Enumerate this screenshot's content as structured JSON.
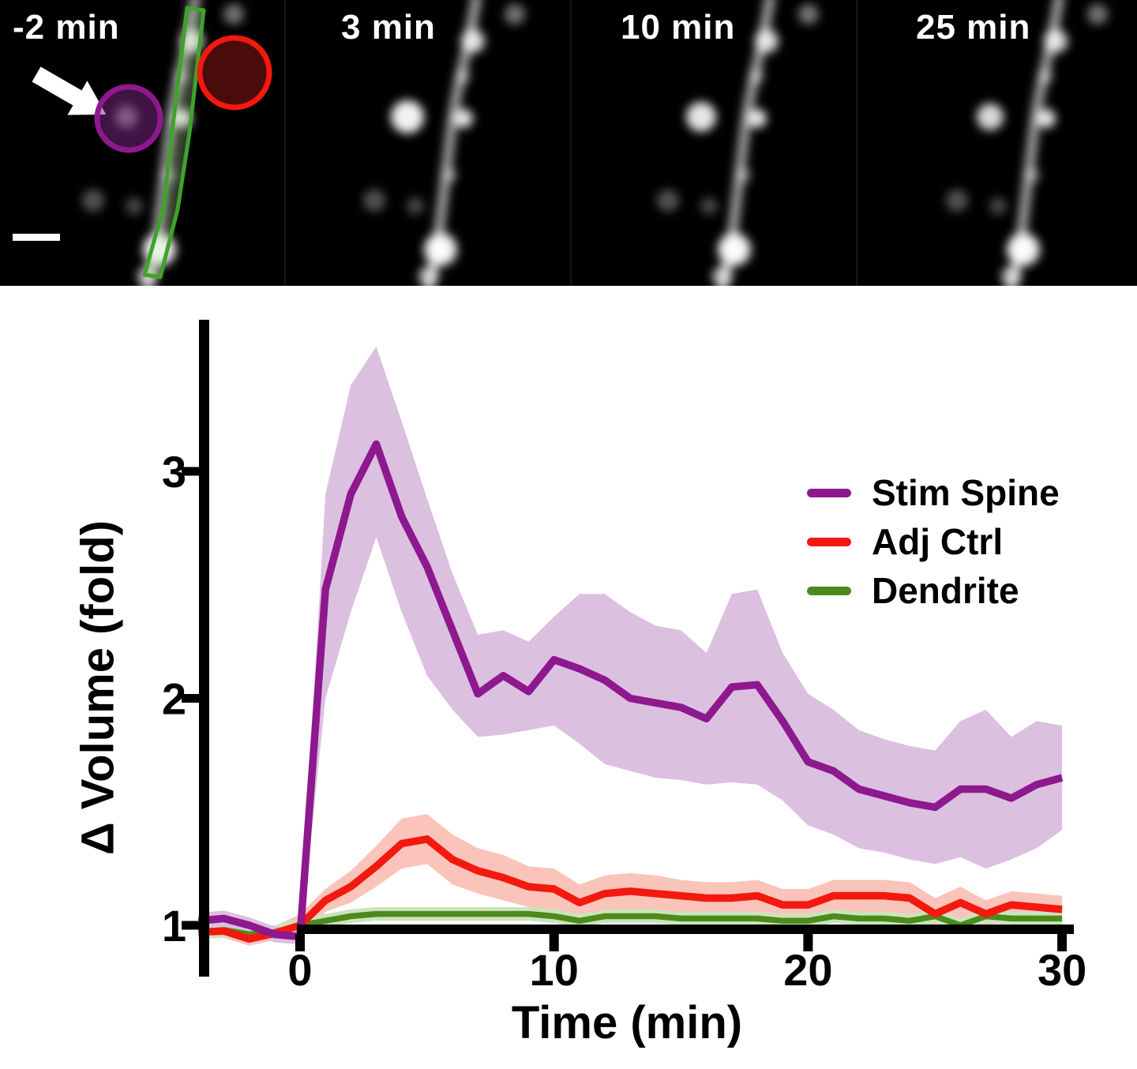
{
  "figure_panels": {
    "items": [
      {
        "label": "-2 min"
      },
      {
        "label": "3 min"
      },
      {
        "label": "10 min"
      },
      {
        "label": "25 min"
      }
    ],
    "annotation_colors": {
      "stim_spine_circle": "#8E188E",
      "adj_ctrl_circle": "#F3190F",
      "dendrite_roi": "#3FA32B",
      "arrow": "#FFFFFF",
      "scale_bar": "#FFFFFF"
    }
  },
  "chart_data": {
    "type": "line",
    "title": "",
    "xlabel": "Time (min)",
    "ylabel": "Δ Volume (fold)",
    "xlim": [
      -4,
      30
    ],
    "ylim": [
      0.85,
      3.7
    ],
    "xticks": [
      0,
      10,
      20,
      30
    ],
    "yticks": [
      1,
      2,
      3
    ],
    "grid": false,
    "legend_position": "upper right",
    "x": [
      -4,
      -3,
      -2,
      -1,
      0,
      1,
      2,
      3,
      4,
      5,
      6,
      7,
      8,
      9,
      10,
      11,
      12,
      13,
      14,
      15,
      16,
      17,
      18,
      19,
      20,
      21,
      22,
      23,
      24,
      25,
      26,
      27,
      28,
      29,
      30
    ],
    "series": [
      {
        "name": "Stim Spine",
        "color": "#8E188E",
        "band_color": "#DCC0E0",
        "values": [
          1.02,
          1.03,
          1.0,
          0.96,
          0.95,
          2.48,
          2.9,
          3.12,
          2.8,
          2.58,
          2.3,
          2.02,
          2.1,
          2.03,
          2.17,
          2.13,
          2.08,
          2.0,
          1.98,
          1.96,
          1.91,
          2.05,
          2.06,
          1.9,
          1.72,
          1.68,
          1.6,
          1.57,
          1.54,
          1.52,
          1.6,
          1.6,
          1.56,
          1.62,
          1.65
        ],
        "band_upper": [
          1.055,
          1.065,
          1.035,
          0.995,
          0.985,
          2.9,
          3.38,
          3.55,
          3.22,
          2.88,
          2.55,
          2.28,
          2.3,
          2.25,
          2.36,
          2.46,
          2.46,
          2.38,
          2.32,
          2.3,
          2.2,
          2.46,
          2.48,
          2.2,
          2.02,
          1.95,
          1.86,
          1.82,
          1.79,
          1.77,
          1.9,
          1.95,
          1.83,
          1.9,
          1.88
        ],
        "band_lower": [
          0.985,
          0.995,
          0.965,
          0.925,
          0.915,
          2.0,
          2.38,
          2.71,
          2.38,
          2.1,
          1.95,
          1.83,
          1.84,
          1.86,
          1.88,
          1.8,
          1.71,
          1.68,
          1.65,
          1.64,
          1.62,
          1.63,
          1.62,
          1.55,
          1.44,
          1.4,
          1.34,
          1.32,
          1.29,
          1.27,
          1.3,
          1.25,
          1.29,
          1.34,
          1.42
        ]
      },
      {
        "name": "Adj Ctrl",
        "color": "#F3190F",
        "band_color": "#FAC4BA",
        "values": [
          0.97,
          0.975,
          0.94,
          0.965,
          1.0,
          1.11,
          1.17,
          1.26,
          1.36,
          1.38,
          1.29,
          1.24,
          1.21,
          1.17,
          1.16,
          1.1,
          1.14,
          1.15,
          1.14,
          1.13,
          1.12,
          1.12,
          1.13,
          1.09,
          1.09,
          1.13,
          1.13,
          1.13,
          1.12,
          1.05,
          1.1,
          1.05,
          1.09,
          1.08,
          1.07
        ],
        "band_upper": [
          1.0,
          1.005,
          0.97,
          0.995,
          1.05,
          1.16,
          1.24,
          1.35,
          1.47,
          1.49,
          1.4,
          1.34,
          1.31,
          1.26,
          1.25,
          1.18,
          1.22,
          1.23,
          1.22,
          1.2,
          1.19,
          1.19,
          1.2,
          1.16,
          1.16,
          1.2,
          1.2,
          1.2,
          1.19,
          1.12,
          1.17,
          1.11,
          1.15,
          1.14,
          1.13
        ],
        "band_lower": [
          0.94,
          0.945,
          0.91,
          0.935,
          0.95,
          1.06,
          1.1,
          1.17,
          1.25,
          1.27,
          1.18,
          1.14,
          1.11,
          1.08,
          1.07,
          1.02,
          1.06,
          1.07,
          1.06,
          1.06,
          1.05,
          1.05,
          1.06,
          1.02,
          1.02,
          1.06,
          1.06,
          1.06,
          1.05,
          0.98,
          1.03,
          0.99,
          1.03,
          1.02,
          1.01
        ]
      },
      {
        "name": "Dendrite",
        "color": "#4C8A1C",
        "band_color": "#CBE4BC",
        "values": [
          0.97,
          0.98,
          0.96,
          0.97,
          1.0,
          1.02,
          1.04,
          1.05,
          1.05,
          1.05,
          1.05,
          1.05,
          1.05,
          1.05,
          1.04,
          1.02,
          1.04,
          1.04,
          1.04,
          1.03,
          1.03,
          1.03,
          1.03,
          1.02,
          1.02,
          1.04,
          1.03,
          1.03,
          1.02,
          1.04,
          1.0,
          1.04,
          1.03,
          1.03,
          1.03
        ],
        "band_upper": [
          1.0,
          1.01,
          0.99,
          1.0,
          1.03,
          1.05,
          1.07,
          1.08,
          1.08,
          1.08,
          1.08,
          1.08,
          1.08,
          1.08,
          1.07,
          1.05,
          1.07,
          1.07,
          1.07,
          1.06,
          1.06,
          1.06,
          1.06,
          1.05,
          1.05,
          1.07,
          1.06,
          1.06,
          1.05,
          1.07,
          1.03,
          1.07,
          1.06,
          1.06,
          1.06
        ],
        "band_lower": [
          0.94,
          0.95,
          0.93,
          0.94,
          0.97,
          0.99,
          1.01,
          1.02,
          1.02,
          1.02,
          1.02,
          1.02,
          1.02,
          1.02,
          1.01,
          0.99,
          1.01,
          1.01,
          1.01,
          1.0,
          1.0,
          1.0,
          1.0,
          0.99,
          0.99,
          1.01,
          1.0,
          1.0,
          0.99,
          1.01,
          0.97,
          1.01,
          1.0,
          1.0,
          1.0
        ]
      }
    ]
  }
}
